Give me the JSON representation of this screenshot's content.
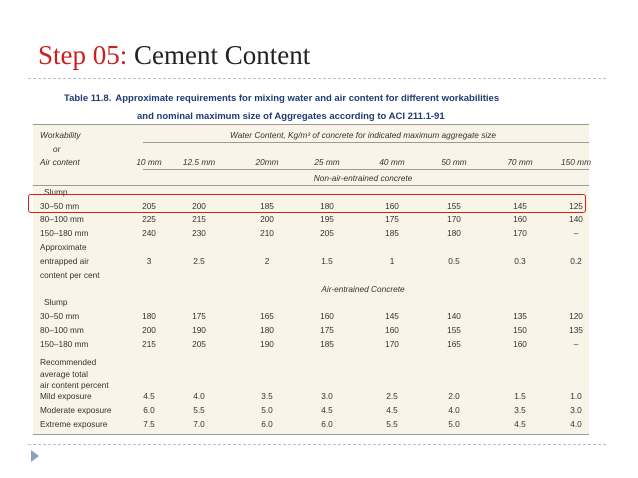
{
  "slide": {
    "title_step": "Step 05:",
    "title_rest": " Cement Content"
  },
  "table": {
    "caption_label": "Table 11.8.",
    "caption_line1": "Approximate requirements for mixing water and air content for different workabilities",
    "caption_line2": "and nominal maximum size of Aggregates according to ACI 211.1-91",
    "header_workability": "Workability",
    "header_or": "or",
    "header_air": "Air content",
    "header_water": "Water Content, Kg/m³ of concrete for indicated maximum aggregate size",
    "sizes": [
      "10 mm",
      "12.5 mm",
      "20mm",
      "25 mm",
      "40 mm",
      "50 mm",
      "70 mm",
      "150 mm"
    ],
    "section1": "Non-air-entrained concrete",
    "slump1": "Slump",
    "rows1": [
      {
        "label": "30–50 mm",
        "values": [
          "205",
          "200",
          "185",
          "180",
          "160",
          "155",
          "145",
          "125"
        ]
      },
      {
        "label": "80–100 mm",
        "values": [
          "225",
          "215",
          "200",
          "195",
          "175",
          "170",
          "160",
          "140"
        ]
      },
      {
        "label": "150–180 mm",
        "values": [
          "240",
          "230",
          "210",
          "205",
          "185",
          "180",
          "170",
          "–"
        ]
      }
    ],
    "approx_lines": [
      "Approximate",
      "entrapped air",
      "content per cent"
    ],
    "approx_values": [
      "3",
      "2.5",
      "2",
      "1.5",
      "1",
      "0.5",
      "0.3",
      "0.2"
    ],
    "section2": "Air-entrained Concrete",
    "slump2": "Slump",
    "rows2": [
      {
        "label": "30–50 mm",
        "values": [
          "180",
          "175",
          "165",
          "160",
          "145",
          "140",
          "135",
          "120"
        ]
      },
      {
        "label": "80–100 mm",
        "values": [
          "200",
          "190",
          "180",
          "175",
          "160",
          "155",
          "150",
          "135"
        ]
      },
      {
        "label": "150–180 mm",
        "values": [
          "215",
          "205",
          "190",
          "185",
          "170",
          "165",
          "160",
          "–"
        ]
      }
    ],
    "recommended_lines": [
      "Recommended",
      "average total",
      "air content percent"
    ],
    "exposure_rows": [
      {
        "label": "Mild exposure",
        "values": [
          "4.5",
          "4.0",
          "3.5",
          "3.0",
          "2.5",
          "2.0",
          "1.5",
          "1.0"
        ]
      },
      {
        "label": "Moderate exposure",
        "values": [
          "6.0",
          "5.5",
          "5.0",
          "4.5",
          "4.5",
          "4.0",
          "3.5",
          "3.0"
        ]
      },
      {
        "label": "Extreme exposure",
        "values": [
          "7.5",
          "7.0",
          "6.0",
          "6.0",
          "5.5",
          "5.0",
          "4.5",
          "4.0"
        ]
      }
    ]
  },
  "colors": {
    "title_accent": "#cc1f1f",
    "caption": "#1f3b73",
    "table_bg": "#f8f4e7",
    "highlight": "#d21f1f"
  }
}
